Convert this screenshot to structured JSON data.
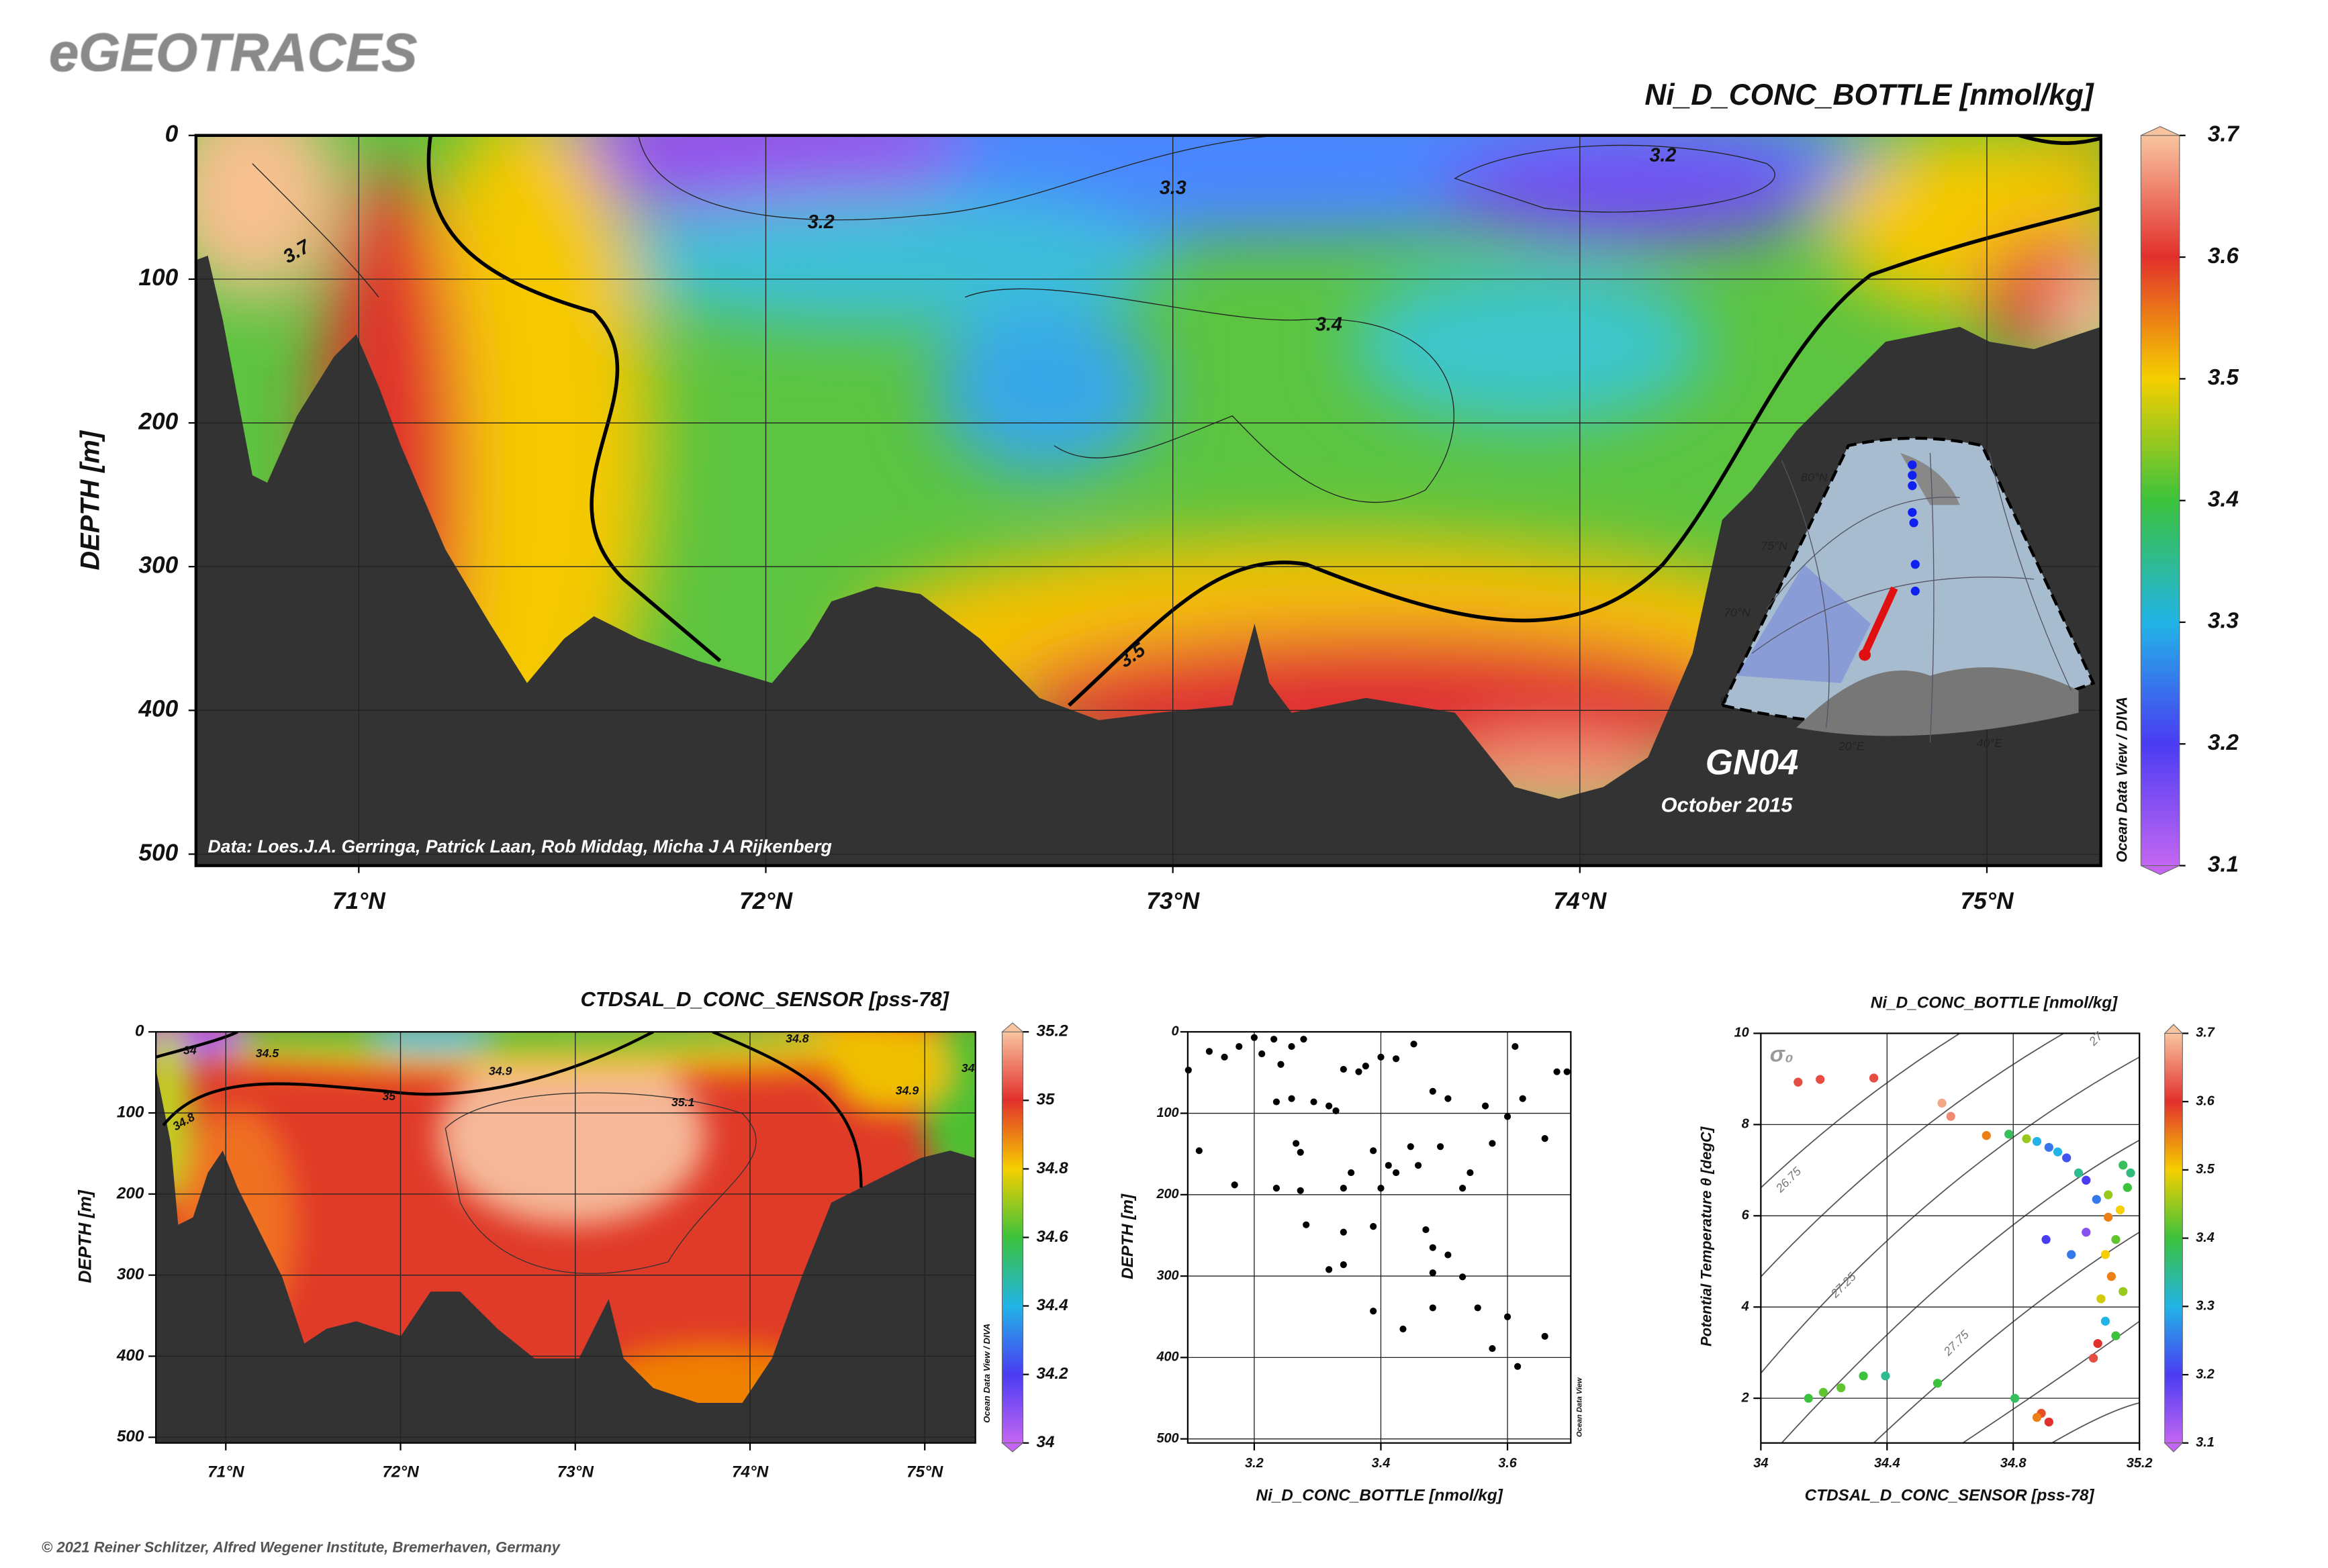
{
  "header": {
    "logo": "eGEOTRACES"
  },
  "footer": "© 2021 Reiner Schlitzer, Alfred Wegener Institute, Bremerhaven, Germany",
  "chart_data": [
    {
      "type": "section",
      "title": "Ni_D_CONC_BOTTLE [nmol/kg]",
      "y_label": "DEPTH [m]",
      "xlim": [
        70.6,
        75.28
      ],
      "xticks": [
        {
          "value": 71,
          "label": "71°N"
        },
        {
          "value": 72,
          "label": "72°N"
        },
        {
          "value": 73,
          "label": "73°N"
        },
        {
          "value": 74,
          "label": "74°N"
        },
        {
          "value": 75,
          "label": "75°N"
        }
      ],
      "ylim": [
        0,
        508
      ],
      "yticks": [
        0,
        100,
        200,
        300,
        400,
        500
      ],
      "y_reversed": true,
      "grid": true,
      "clim": [
        3.1,
        3.7
      ],
      "cticks": [
        3.1,
        3.2,
        3.3,
        3.4,
        3.5,
        3.6,
        3.7
      ],
      "colorscale": [
        "#c466f2",
        "#4a3cf2",
        "#22b4e6",
        "#3cc23c",
        "#f5cf00",
        "#e2302c",
        "#f8c4a0"
      ],
      "contour_labels": [
        3.7,
        3.2,
        3.3,
        3.2,
        3.4,
        3.5
      ],
      "annotations": [
        "Data: Loes.J.A. Gerringa, Patrick Laan, Rob Middag, Micha J A Rijkenberg",
        "GN04",
        "October 2015",
        "Ocean Data View / DIVA"
      ],
      "inset_labels": [
        "80°N",
        "75°N",
        "70°N",
        "0",
        "20°E",
        "40°E"
      ]
    },
    {
      "type": "section",
      "title": "CTDSAL_D_CONC_SENSOR [pss-78]",
      "y_label": "DEPTH [m]",
      "xlim": [
        70.6,
        75.29
      ],
      "xticks": [
        {
          "value": 71,
          "label": "71°N"
        },
        {
          "value": 72,
          "label": "72°N"
        },
        {
          "value": 73,
          "label": "73°N"
        },
        {
          "value": 74,
          "label": "74°N"
        },
        {
          "value": 75,
          "label": "75°N"
        }
      ],
      "ylim": [
        0,
        507
      ],
      "yticks": [
        0,
        100,
        200,
        300,
        400,
        500
      ],
      "y_reversed": true,
      "grid": true,
      "clim": [
        34,
        35.2
      ],
      "cticks": [
        34,
        34.2,
        34.4,
        34.6,
        34.8,
        35,
        35.2
      ],
      "colorscale": [
        "#c466f2",
        "#4a3cf2",
        "#22b4e6",
        "#3cc23c",
        "#f5cf00",
        "#e2302c",
        "#f8c4a0"
      ],
      "contour_labels": [
        34,
        34.5,
        34.8,
        34.9,
        35,
        35.1,
        34.8,
        34.9,
        34
      ],
      "annotations": [
        "Ocean Data View / DIVA"
      ]
    },
    {
      "type": "scatter",
      "x_label": "Ni_D_CONC_BOTTLE [nmol/kg]",
      "y_label": "DEPTH [m]",
      "xlim": [
        3.095,
        3.7
      ],
      "xticks": [
        3.2,
        3.4,
        3.6
      ],
      "ylim": [
        0,
        505
      ],
      "yticks": [
        0,
        100,
        200,
        300,
        400,
        500
      ],
      "y_reversed": true,
      "grid": true,
      "color": "#000000",
      "x": [
        3.096,
        3.113,
        3.169,
        3.129,
        3.153,
        3.176,
        3.2,
        3.212,
        3.231,
        3.242,
        3.259,
        3.278,
        3.235,
        3.259,
        3.294,
        3.318,
        3.329,
        3.341,
        3.365,
        3.376,
        3.4,
        3.424,
        3.452,
        3.266,
        3.273,
        3.235,
        3.273,
        3.341,
        3.353,
        3.388,
        3.412,
        3.4,
        3.424,
        3.447,
        3.459,
        3.482,
        3.506,
        3.494,
        3.529,
        3.541,
        3.565,
        3.576,
        3.6,
        3.612,
        3.624,
        3.659,
        3.678,
        3.694,
        3.282,
        3.341,
        3.388,
        3.471,
        3.482,
        3.506,
        3.318,
        3.341,
        3.482,
        3.529,
        3.388,
        3.482,
        3.553,
        3.6,
        3.435,
        3.576,
        3.659,
        3.616
      ],
      "values": [
        47,
        146,
        188,
        24,
        31,
        18,
        7,
        27,
        9,
        40,
        18,
        9,
        86,
        82,
        86,
        91,
        97,
        46,
        49,
        42,
        31,
        33,
        15,
        137,
        148,
        192,
        195,
        192,
        173,
        146,
        164,
        192,
        173,
        141,
        164,
        73,
        82,
        141,
        192,
        173,
        91,
        137,
        104,
        18,
        82,
        131,
        49,
        49,
        237,
        246,
        239,
        243,
        265,
        274,
        292,
        286,
        296,
        301,
        343,
        339,
        339,
        350,
        365,
        389,
        374,
        411
      ],
      "annotations": [
        "Ocean Data View"
      ]
    },
    {
      "type": "scatter",
      "title": "Ni_D_CONC_BOTTLE [nmol/kg]",
      "x_label": "CTDSAL_D_CONC_SENSOR [pss-78]",
      "y_label": "Potential Temperature θ [degC]",
      "xlim": [
        34,
        35.2
      ],
      "xticks": [
        34,
        34.4,
        34.8,
        35.2
      ],
      "ylim": [
        1.02,
        10
      ],
      "yticks": [
        2,
        4,
        6,
        8,
        10
      ],
      "grid": true,
      "clim": [
        3.1,
        3.7
      ],
      "cticks": [
        3.1,
        3.2,
        3.3,
        3.4,
        3.5,
        3.6,
        3.7
      ],
      "colorscale": [
        "#c466f2",
        "#4a3cf2",
        "#22b4e6",
        "#3cc23c",
        "#f5cf00",
        "#e2302c",
        "#f8c4a0"
      ],
      "x": [
        34.118,
        34.188,
        34.358,
        34.574,
        34.602,
        34.715,
        34.786,
        34.842,
        34.875,
        34.913,
        34.941,
        34.969,
        35.007,
        35.031,
        35.064,
        35.101,
        35.148,
        35.172,
        35.162,
        35.139,
        35.101,
        35.125,
        35.092,
        35.111,
        35.078,
        35.092,
        35.068,
        35.054,
        35.031,
        34.984,
        34.904,
        34.805,
        34.56,
        34.395,
        34.325,
        34.254,
        34.198,
        34.151,
        34.889,
        34.913,
        34.875,
        35.125,
        35.148
      ],
      "values": [
        8.93,
        8.99,
        9.02,
        8.47,
        8.18,
        7.76,
        7.79,
        7.69,
        7.63,
        7.5,
        7.4,
        7.27,
        6.94,
        6.78,
        6.36,
        6.46,
        7.11,
        6.94,
        6.62,
        6.13,
        5.97,
        5.48,
        5.15,
        4.67,
        4.18,
        3.69,
        3.2,
        2.88,
        5.64,
        5.15,
        5.48,
        2.0,
        2.33,
        2.49,
        2.49,
        2.23,
        2.13,
        2.0,
        1.67,
        1.48,
        1.58,
        3.37,
        4.34
      ],
      "color_values": [
        3.62,
        3.62,
        3.62,
        3.68,
        3.66,
        3.55,
        3.38,
        3.45,
        3.3,
        3.25,
        3.3,
        3.22,
        3.35,
        3.2,
        3.25,
        3.45,
        3.38,
        3.36,
        3.4,
        3.5,
        3.55,
        3.42,
        3.5,
        3.55,
        3.48,
        3.3,
        3.6,
        3.62,
        3.15,
        3.25,
        3.2,
        3.38,
        3.4,
        3.35,
        3.4,
        3.42,
        3.42,
        3.4,
        3.58,
        3.6,
        3.55,
        3.4,
        3.45
      ],
      "annotations": [
        "σ₀"
      ],
      "contour_labels": [
        26.75,
        27.25,
        27.75,
        27
      ]
    }
  ]
}
